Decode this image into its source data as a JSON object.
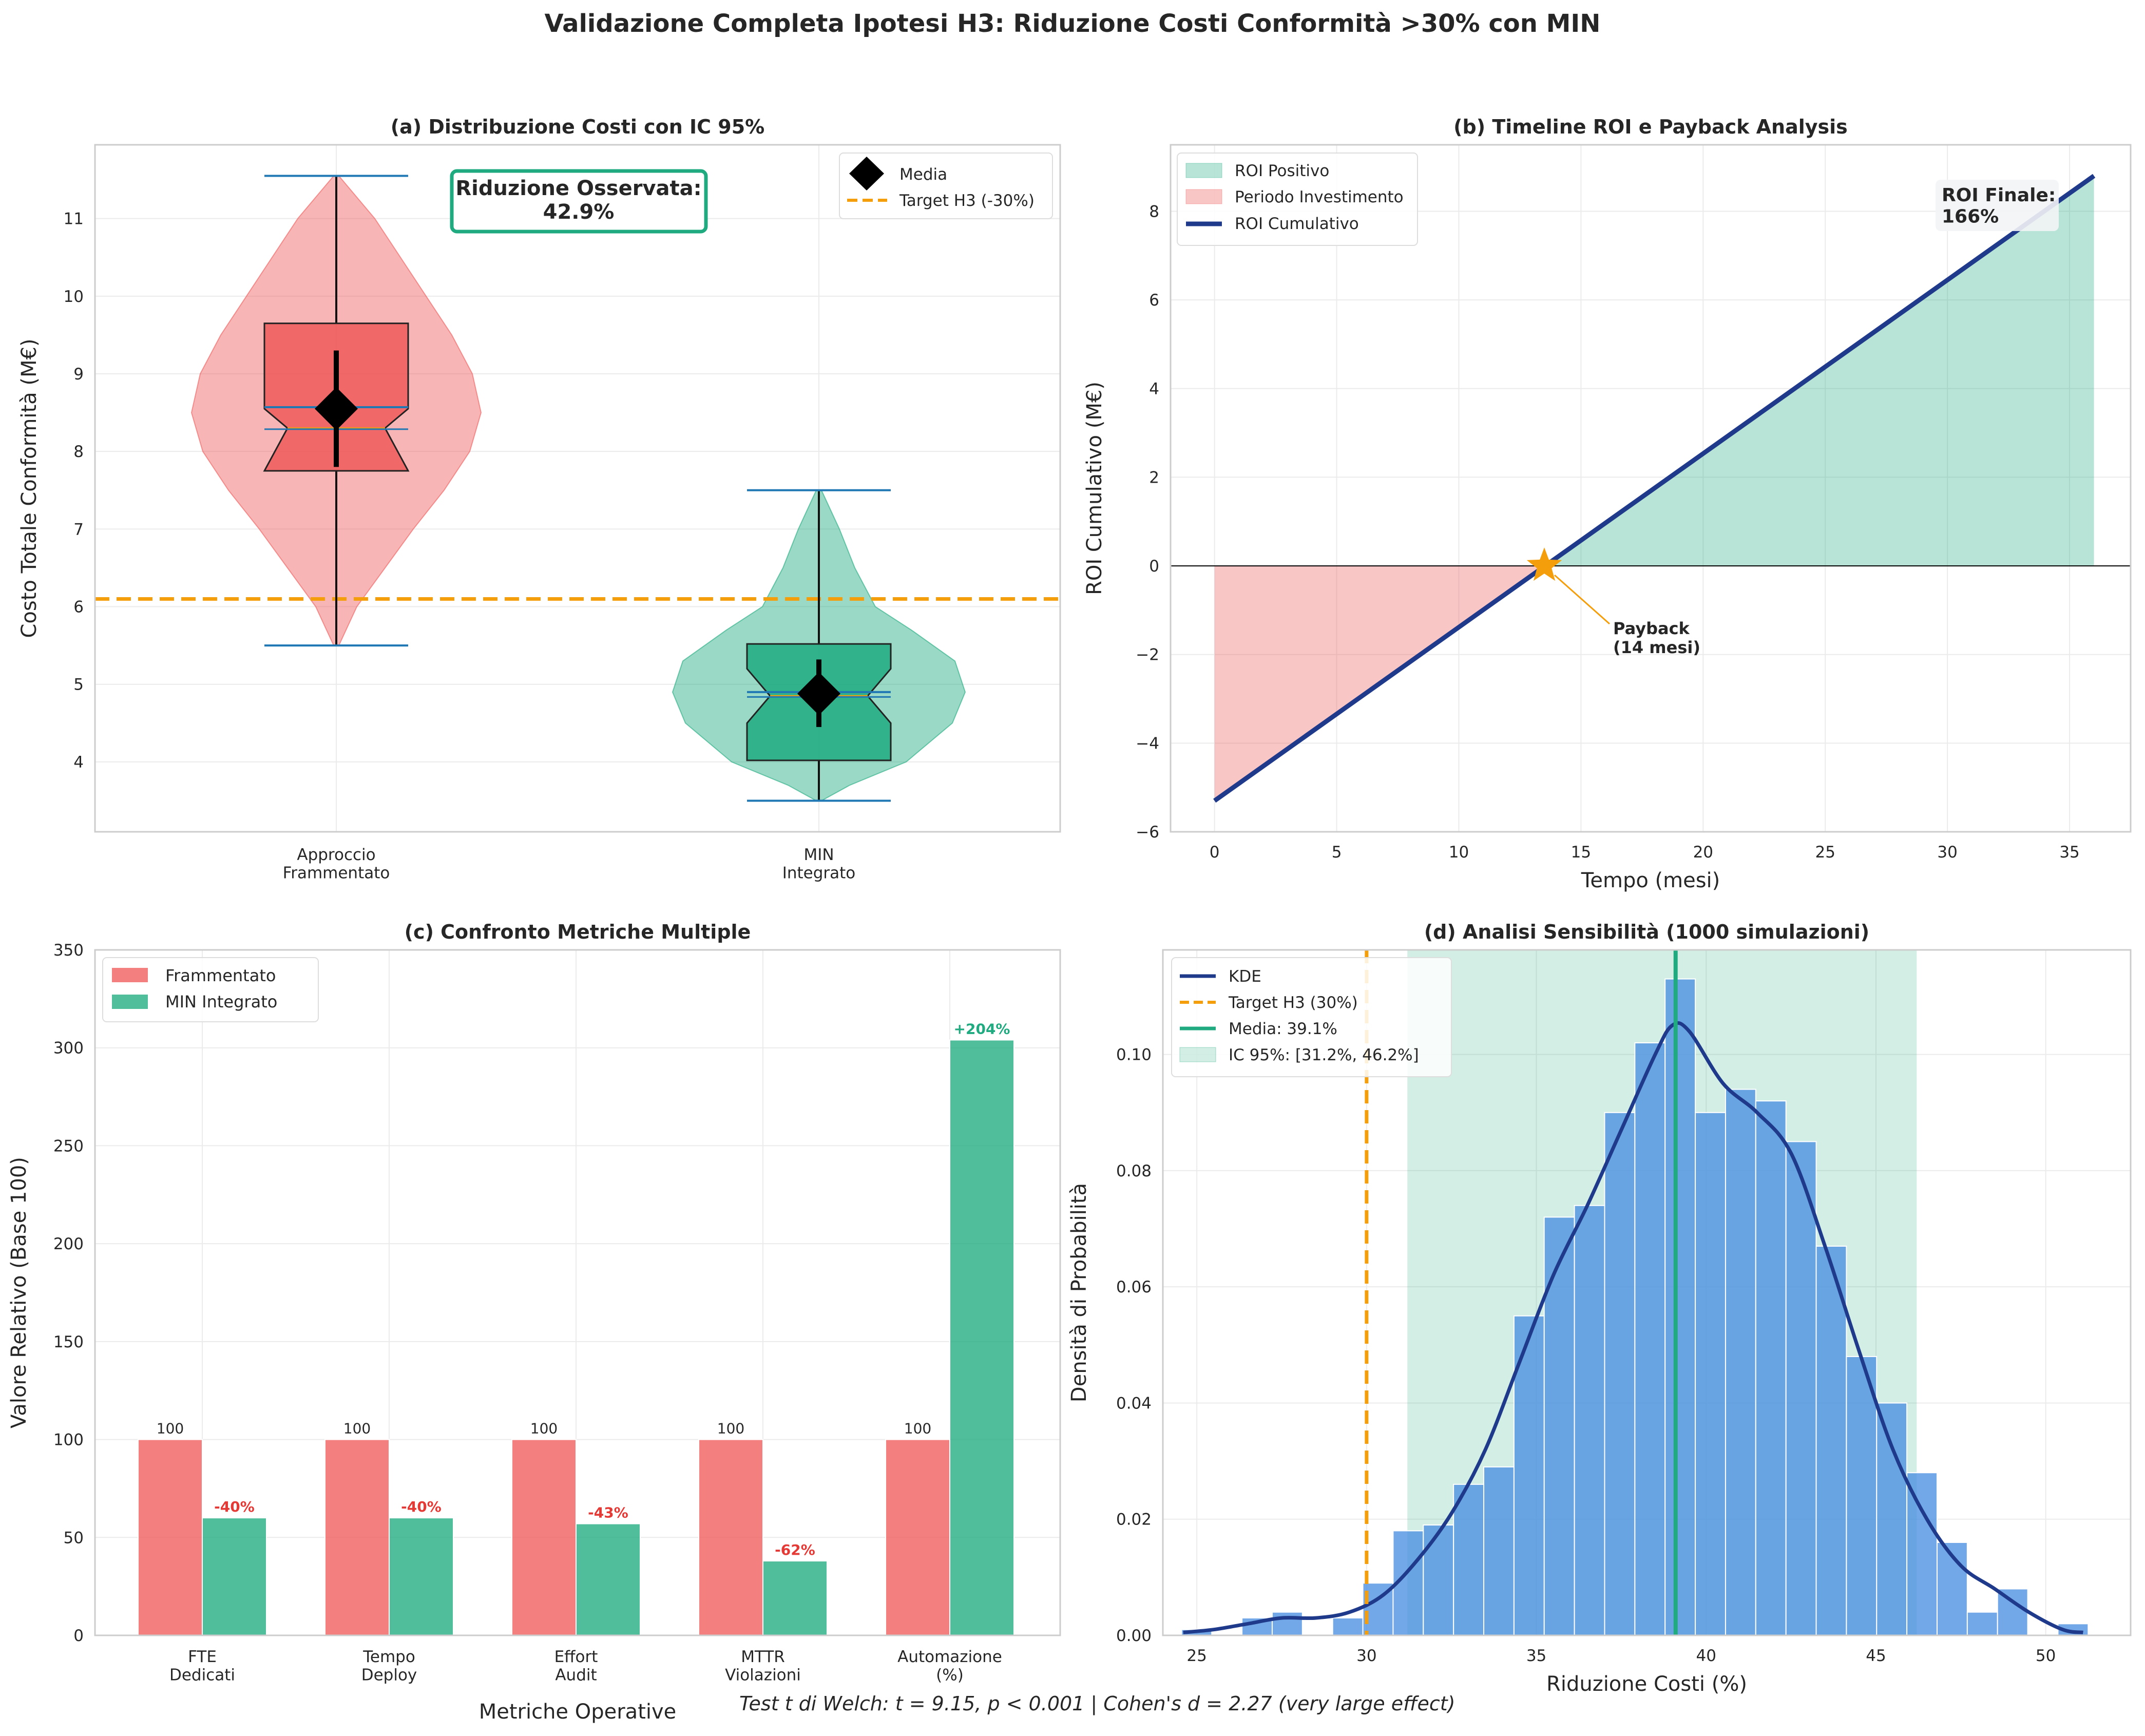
{
  "suptitle": "Validazione Completa Ipotesi H3: Riduzione Costi Conformità >30% con MIN",
  "footnote": "Test t di Welch: t = 9.15, p < 0.001 | Cohen's d = 2.27 (very large effect)",
  "colors": {
    "red": "#ef5b5b",
    "green": "#1faa7f",
    "navy": "#1f3a8a",
    "orange": "#f59e0b",
    "blue_hist": "#4a90e2",
    "grid": "#ebebeb",
    "spine": "#cccccc"
  },
  "chart_data": [
    {
      "panel": "a",
      "type": "violin",
      "title": "(a) Distribuzione Costi con IC 95%",
      "ylabel": "Costo Totale Conformità (M€)",
      "ylim": [
        3.1,
        11.95
      ],
      "yticks": [
        4,
        5,
        6,
        7,
        8,
        9,
        10,
        11
      ],
      "categories": [
        "Approccio\nFrammentato",
        "MIN\nIntegrato"
      ],
      "groups": [
        {
          "name": "Approccio Frammentato",
          "min": 5.5,
          "q1": 7.75,
          "median": 8.3,
          "q3": 9.65,
          "max": 11.55,
          "mean": 8.55,
          "ci_low": 7.8,
          "ci_high": 9.3,
          "notch_low": 7.75,
          "notch_high": 8.55
        },
        {
          "name": "MIN Integrato",
          "min": 3.5,
          "q1": 4.02,
          "median": 4.85,
          "q3": 5.52,
          "max": 7.5,
          "mean": 4.88,
          "ci_low": 4.45,
          "ci_high": 5.32,
          "notch_low": 4.5,
          "notch_high": 5.2
        }
      ],
      "target_line": 6.1,
      "legend": [
        "Media",
        "Target H3 (-30%)"
      ],
      "annotation": "Riduzione Osservata:\n42.9%"
    },
    {
      "panel": "b",
      "type": "line",
      "title": "(b) Timeline ROI e Payback Analysis",
      "xlabel": "Tempo (mesi)",
      "ylabel": "ROI Cumulativo (M€)",
      "xlim": [
        -1.8,
        37.5
      ],
      "ylim": [
        -6,
        9.5
      ],
      "xticks": [
        0,
        5,
        10,
        15,
        20,
        25,
        30,
        35
      ],
      "yticks": [
        -6,
        -4,
        -2,
        0,
        2,
        4,
        6,
        8
      ],
      "series": [
        {
          "name": "ROI Cumulativo",
          "x": [
            0,
            36
          ],
          "y": [
            -5.3,
            8.8
          ]
        }
      ],
      "legend": [
        "ROI Positivo",
        "Periodo Investimento",
        "ROI Cumulativo"
      ],
      "payback_x": 13.5,
      "payback_label": "Payback\n(14 mesi)",
      "final_label": "ROI Finale:\n166%"
    },
    {
      "panel": "c",
      "type": "bar",
      "title": "(c) Confronto Metriche Multiple",
      "xlabel": "Metriche Operative",
      "ylabel": "Valore Relativo (Base 100)",
      "ylim": [
        0,
        350
      ],
      "yticks": [
        0,
        50,
        100,
        150,
        200,
        250,
        300,
        350
      ],
      "categories": [
        "FTE\nDedicati",
        "Tempo\nDeploy",
        "Effort\nAudit",
        "MTTR\nViolazioni",
        "Automazione\n(%)"
      ],
      "series": [
        {
          "name": "Frammentato",
          "values": [
            100,
            100,
            100,
            100,
            100
          ],
          "labels": [
            "100",
            "100",
            "100",
            "100",
            "100"
          ]
        },
        {
          "name": "MIN Integrato",
          "values": [
            60,
            60,
            57,
            38,
            304
          ],
          "labels": [
            "-40%",
            "-40%",
            "-43%",
            "-62%",
            "+204%"
          ]
        }
      ]
    },
    {
      "panel": "d",
      "type": "histogram",
      "title": "(d) Analisi Sensibilità (1000 simulazioni)",
      "xlabel": "Riduzione Costi (%)",
      "ylabel": "Densità di Probabilità",
      "xlim": [
        24,
        52.5
      ],
      "ylim": [
        0,
        0.118
      ],
      "xticks": [
        25,
        30,
        35,
        40,
        45,
        50
      ],
      "yticks": [
        0.0,
        0.02,
        0.04,
        0.06,
        0.08,
        0.1
      ],
      "bin_edges": [
        24.55,
        25.44,
        26.33,
        27.22,
        28.11,
        29.0,
        29.89,
        30.78,
        31.67,
        32.56,
        33.45,
        34.34,
        35.23,
        36.12,
        37.01,
        37.9,
        38.79,
        39.68,
        40.57,
        41.46,
        42.35,
        43.24,
        44.13,
        45.02,
        45.91,
        46.8,
        47.69,
        48.58,
        49.47,
        50.36,
        51.25
      ],
      "densities": [
        0.001,
        0.0,
        0.003,
        0.004,
        0.0,
        0.003,
        0.009,
        0.018,
        0.019,
        0.026,
        0.029,
        0.055,
        0.072,
        0.074,
        0.09,
        0.102,
        0.113,
        0.09,
        0.094,
        0.092,
        0.085,
        0.067,
        0.048,
        0.04,
        0.028,
        0.016,
        0.004,
        0.008,
        0.0,
        0.002
      ],
      "kde": {
        "x": [
          24.6,
          25.5,
          26.5,
          27.5,
          28.5,
          29.5,
          30.5,
          31.5,
          32.5,
          33.5,
          34.5,
          35.5,
          36.5,
          37.5,
          38.5,
          39.0,
          39.5,
          40.5,
          41.5,
          42.5,
          43.5,
          44.5,
          45.5,
          46.5,
          47.5,
          48.5,
          49.5,
          50.5,
          51.1
        ],
        "y": [
          0.0005,
          0.001,
          0.002,
          0.003,
          0.003,
          0.004,
          0.007,
          0.013,
          0.021,
          0.032,
          0.047,
          0.062,
          0.074,
          0.087,
          0.1,
          0.105,
          0.104,
          0.095,
          0.09,
          0.083,
          0.067,
          0.049,
          0.032,
          0.02,
          0.012,
          0.008,
          0.004,
          0.001,
          0.0005
        ]
      },
      "target": 30.0,
      "mean": 39.1,
      "ci": [
        31.2,
        46.2
      ],
      "legend": [
        "KDE",
        "Target H3 (30%)",
        "Media: 39.1%",
        "IC 95%: [31.2%, 46.2%]"
      ]
    }
  ]
}
